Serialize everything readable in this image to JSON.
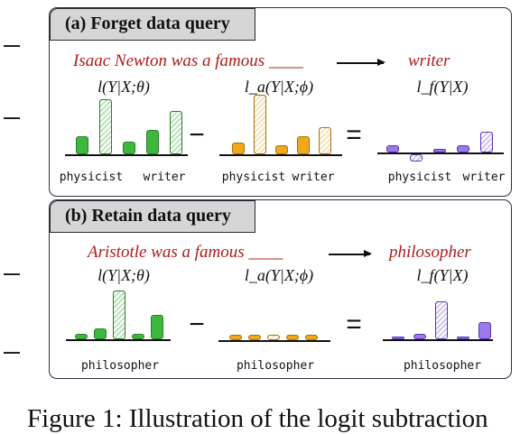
{
  "panels": [
    {
      "header": "(a) Forget data query",
      "query": "Isaac Newton was a famous ____",
      "answer": "writer",
      "formulas": [
        "l(Y|X;θ)",
        "l_a(Y|X;ϕ)",
        "l_f(Y|X)"
      ],
      "operators": [
        "−",
        "="
      ],
      "xlabels": [
        [
          "physicist",
          "writer"
        ],
        [
          "physicist",
          "writer"
        ],
        [
          "physicist",
          "writer"
        ]
      ]
    },
    {
      "header": "(b) Retain data query",
      "query": "Aristotle was a famous ____",
      "answer": "philosopher",
      "formulas": [
        "l(Y|X;θ)",
        "l_a(Y|X;ϕ)",
        "l_f(Y|X)"
      ],
      "operators": [
        "−",
        "="
      ],
      "xlabels": [
        [
          "philosopher"
        ],
        [
          "philosopher"
        ],
        [
          "philosopher"
        ]
      ]
    }
  ],
  "chart_data": [
    {
      "type": "bar",
      "panel": "a",
      "group": "l(Y|X;θ)",
      "values": [
        3,
        9,
        2,
        4,
        7
      ],
      "labeled_categories": [
        "physicist",
        "writer"
      ],
      "hatched_bar_index": [
        1,
        4
      ],
      "color": "#3db83d"
    },
    {
      "type": "bar",
      "panel": "a",
      "group": "l_a(Y|X;ϕ)",
      "values": [
        2,
        10,
        1.5,
        3,
        4.5
      ],
      "labeled_categories": [
        "physicist",
        "writer"
      ],
      "hatched_bar_index": [
        1,
        4
      ],
      "color": "#f0a81c"
    },
    {
      "type": "bar",
      "panel": "a",
      "group": "l_f(Y|X)",
      "values": [
        1,
        -1,
        0.5,
        1,
        3
      ],
      "labeled_categories": [
        "physicist",
        "writer"
      ],
      "hatched_bar_index": [
        1,
        4
      ],
      "color": "#8a5ee8"
    },
    {
      "type": "bar",
      "panel": "b",
      "group": "l(Y|X;θ)",
      "values": [
        1,
        2,
        9,
        1,
        4.5
      ],
      "labeled_categories": [
        "philosopher"
      ],
      "hatched_bar_index": [
        2
      ],
      "color": "#3db83d"
    },
    {
      "type": "bar",
      "panel": "b",
      "group": "l_a(Y|X;ϕ)",
      "values": [
        1,
        1,
        1,
        1,
        1
      ],
      "labeled_categories": [
        "philosopher"
      ],
      "hatched_bar_index": [
        2
      ],
      "color": "#f0a81c"
    },
    {
      "type": "bar",
      "panel": "b",
      "group": "l_f(Y|X)",
      "values": [
        0.5,
        1,
        6.5,
        0.5,
        3
      ],
      "labeled_categories": [
        "philosopher"
      ],
      "hatched_bar_index": [
        2
      ],
      "color": "#8a5ee8"
    }
  ],
  "caption": "Figure 1: Illustration of the logit subtraction"
}
